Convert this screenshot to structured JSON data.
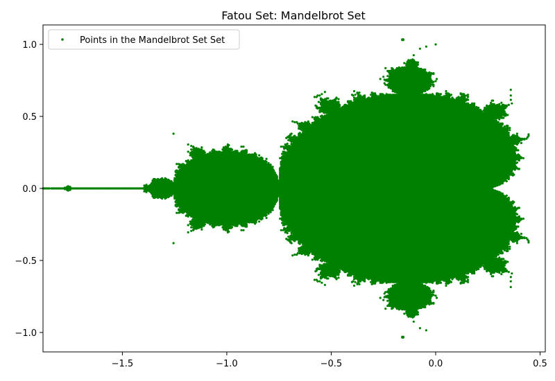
{
  "chart_data": {
    "type": "scatter",
    "title": "Fatou Set: Mandelbrot Set",
    "xlabel": "",
    "ylabel": "",
    "xlim": [
      -1.88,
      0.525
    ],
    "ylim": [
      -1.135,
      1.135
    ],
    "x_ticks": [
      -1.5,
      -1.0,
      -0.5,
      0.0,
      0.5
    ],
    "x_tick_labels": [
      "−1.5",
      "−1.0",
      "−0.5",
      "0.0",
      "0.5"
    ],
    "y_ticks": [
      -1.0,
      -0.5,
      0.0,
      0.5,
      1.0
    ],
    "y_tick_labels": [
      "−1.0",
      "−0.5",
      "0.0",
      "0.5",
      "1.0"
    ],
    "grid": false,
    "legend": {
      "placement": "top-left"
    },
    "series": [
      {
        "name": "Points in the Mandelbrot Set Set",
        "color": "#008000",
        "marker": "point",
        "description_of_points": "points c in the complex plane whose orbit under z -> z^2 + c stays bounded",
        "region": {
          "x_min": -2.0,
          "x_max": 0.5,
          "y_min": -1.1,
          "y_max": 1.1
        }
      }
    ]
  }
}
